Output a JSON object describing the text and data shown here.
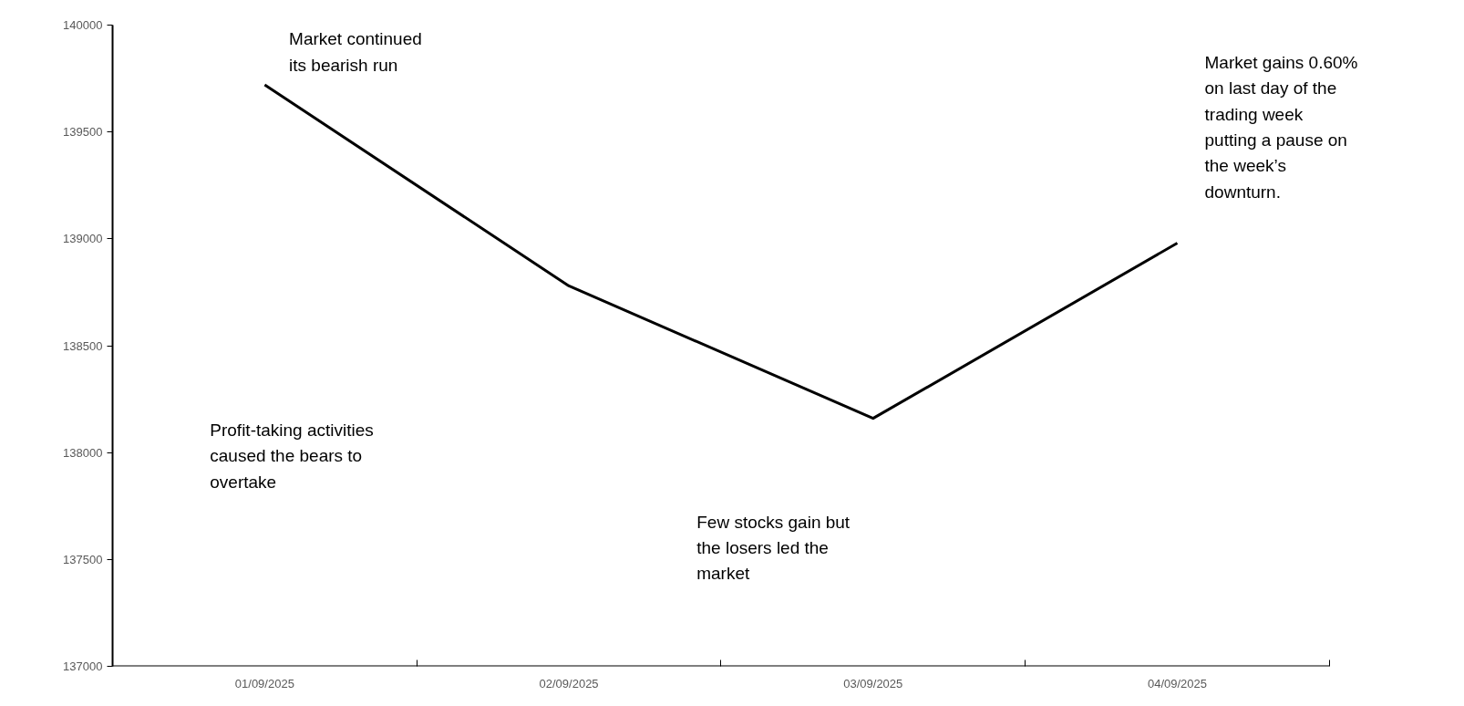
{
  "chart_data": {
    "type": "line",
    "categories": [
      "01/09/2025",
      "02/09/2025",
      "03/09/2025",
      "04/09/2025"
    ],
    "series": [
      {
        "color": "#000000",
        "values": [
          139720,
          138780,
          138160,
          138980
        ]
      }
    ],
    "ylim": [
      137000,
      140000
    ],
    "yticks": [
      137000,
      137500,
      138000,
      138500,
      139000,
      139500,
      140000
    ],
    "grid": false,
    "marker": "none",
    "line_style": "solid",
    "annotations": [
      "Market continued its bearish run",
      "Profit-taking activities caused the bears to overtake",
      "Few stocks gain but the losers led the market",
      "Market gains 0.60% on last day of the trading week putting a pause on the week’s downturn."
    ]
  }
}
